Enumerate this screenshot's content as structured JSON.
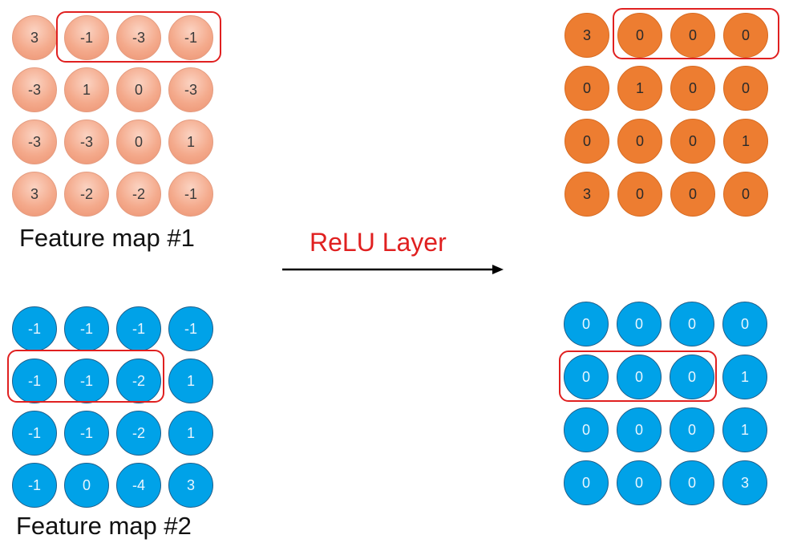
{
  "operation_label": "ReLU Layer",
  "feature_maps": [
    {
      "caption": "Feature map #1",
      "input": [
        [
          3,
          -1,
          -3,
          -1
        ],
        [
          -3,
          1,
          0,
          -3
        ],
        [
          -3,
          -3,
          0,
          1
        ],
        [
          3,
          -2,
          -2,
          -1
        ]
      ],
      "output": [
        [
          3,
          0,
          0,
          0
        ],
        [
          0,
          1,
          0,
          0
        ],
        [
          0,
          0,
          0,
          1
        ],
        [
          3,
          0,
          0,
          0
        ]
      ],
      "input_color": "#f4aa8c",
      "output_color": "#ed7d31"
    },
    {
      "caption": "Feature map #2",
      "input": [
        [
          -1,
          -1,
          -1,
          -1
        ],
        [
          -1,
          -1,
          -2,
          1
        ],
        [
          -1,
          -1,
          -2,
          1
        ],
        [
          -1,
          0,
          -4,
          3
        ]
      ],
      "output": [
        [
          0,
          0,
          0,
          0
        ],
        [
          0,
          0,
          0,
          1
        ],
        [
          0,
          0,
          0,
          1
        ],
        [
          0,
          0,
          0,
          3
        ]
      ],
      "input_color": "#00a2e8",
      "output_color": "#00a2e8"
    }
  ],
  "highlight_color": "#e02020"
}
